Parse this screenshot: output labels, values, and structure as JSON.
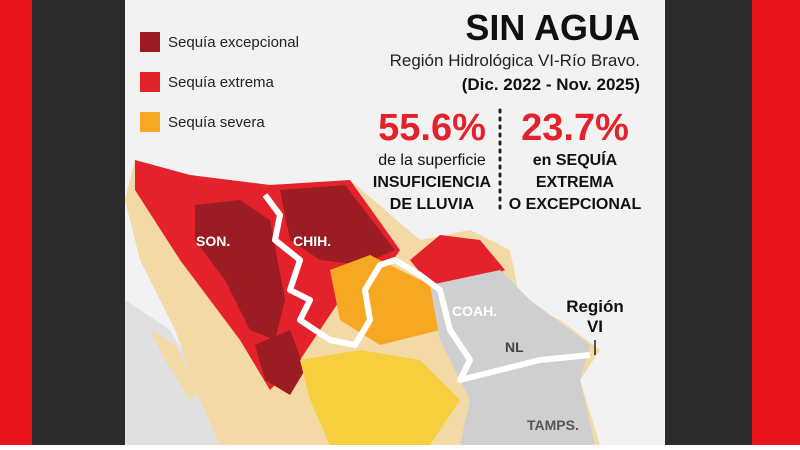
{
  "header": {
    "title": "SIN AGUA",
    "subtitle": "Región Hidrológica VI-Río Bravo.",
    "period": "(Dic. 2022 - Nov. 2025)"
  },
  "legend": [
    {
      "label": "Sequía excepcional",
      "color": "#9b1c22"
    },
    {
      "label": "Sequía extrema",
      "color": "#e4222b"
    },
    {
      "label": "Sequía severa",
      "color": "#f7a823"
    }
  ],
  "stats": [
    {
      "value": "55.6%",
      "lines": [
        "de la superficie",
        "INSUFICIENCIA",
        "DE LLUVIA"
      ]
    },
    {
      "value": "23.7%",
      "lines": [
        "en SEQUÍA",
        "EXTREMA",
        "O EXCEPCIONAL"
      ]
    }
  ],
  "map_labels": {
    "sonora": "SON.",
    "chihuahua": "CHIH.",
    "coahuila": "COAH.",
    "nuevo_leon": "NL",
    "tamaulipas": "TAMPS.",
    "region": [
      "Región",
      "VI"
    ]
  }
}
